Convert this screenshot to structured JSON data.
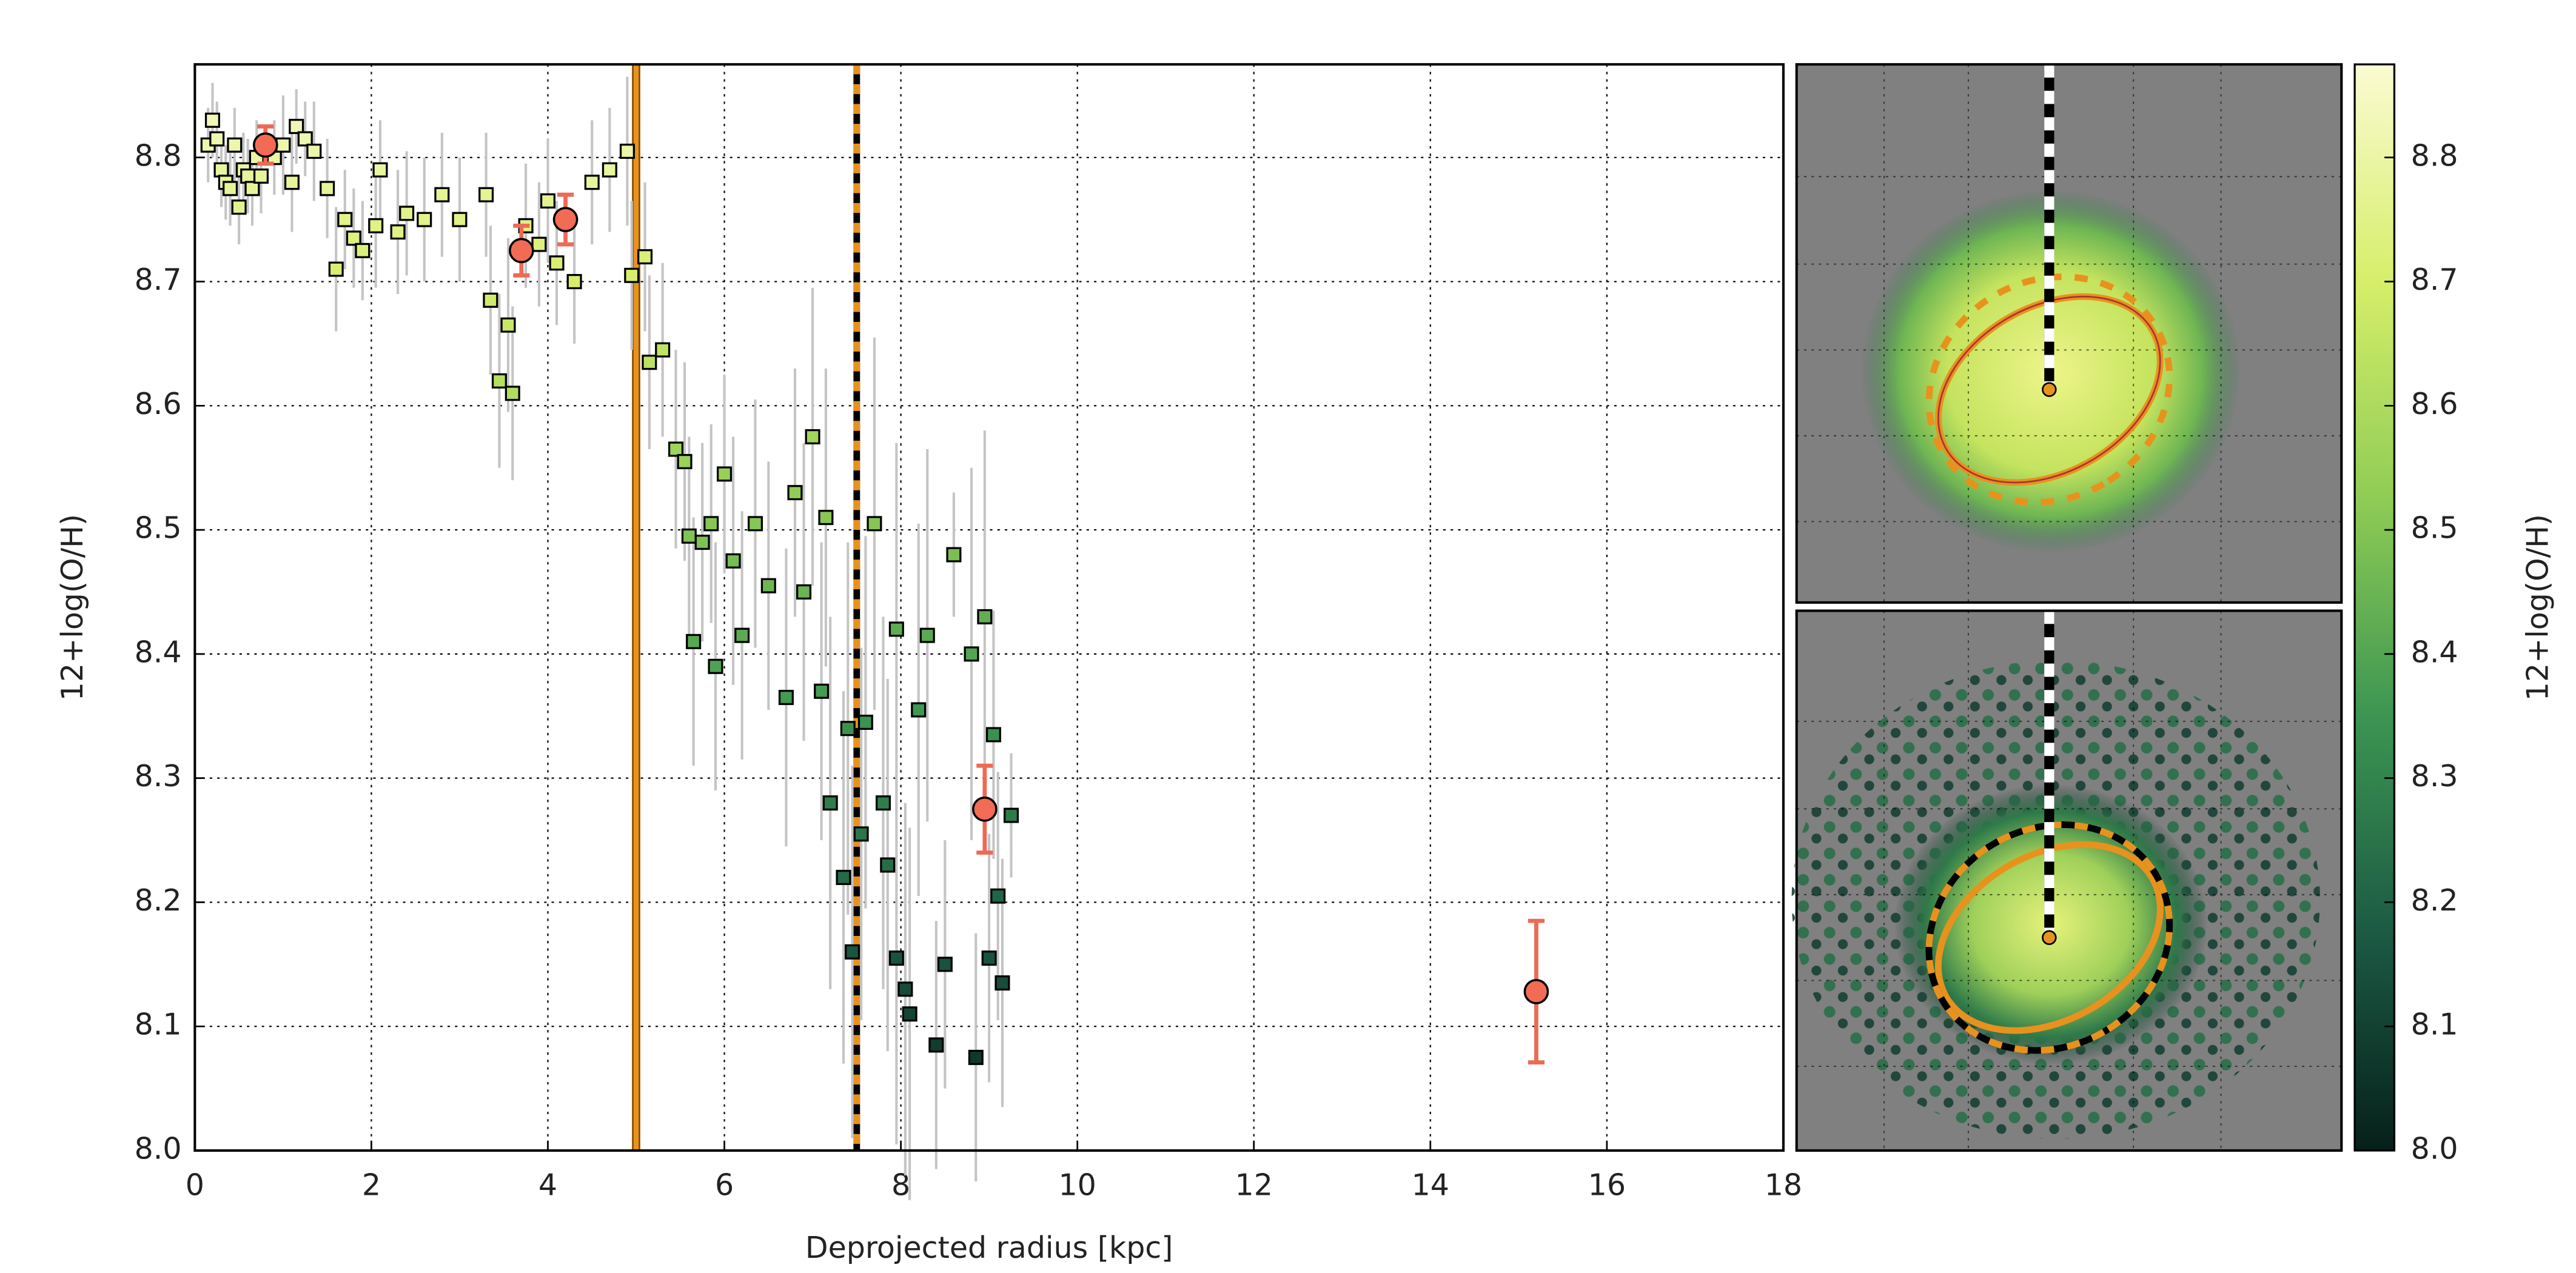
{
  "chart_data": {
    "type": "scatter",
    "xlabel": "Deprojected radius [kpc]",
    "ylabel": "12+log(O/H)",
    "colorbar_label": "12+log(O/H)",
    "xlim": [
      0,
      18
    ],
    "ylim": [
      8.0,
      8.875
    ],
    "xticks": [
      0,
      2,
      4,
      6,
      8,
      10,
      12,
      14,
      16,
      18
    ],
    "yticks": [
      {
        "value": 8.0,
        "label": "8.0"
      },
      8.1,
      8.2,
      8.3,
      8.4,
      8.5,
      8.6,
      8.7,
      8.8
    ],
    "clim": [
      8.0,
      8.875
    ],
    "cticks": [
      {
        "value": 8.0,
        "label": "8.0"
      },
      8.1,
      8.2,
      8.3,
      8.4,
      8.5,
      8.6,
      8.7,
      8.8
    ],
    "colormap": [
      "#06201a",
      "#1c5a44",
      "#3c9552",
      "#8fcc55",
      "#d6ee6a",
      "#fbfbd2"
    ],
    "grid": true,
    "series": [
      {
        "marker": "square",
        "error_color": "#c4c4c4",
        "x": [
          0.15,
          0.2,
          0.25,
          0.3,
          0.35,
          0.4,
          0.45,
          0.5,
          0.55,
          0.6,
          0.65,
          0.7,
          0.75,
          0.9,
          1.0,
          1.1,
          1.15,
          1.25,
          1.35,
          1.5,
          1.6,
          1.7,
          1.8,
          1.9,
          2.05,
          2.1,
          2.3,
          2.4,
          2.6,
          2.8,
          3.0,
          3.3,
          3.35,
          3.45,
          3.55,
          3.6,
          3.75,
          3.9,
          4.0,
          4.1,
          4.3,
          4.5,
          4.7,
          4.9,
          4.95,
          5.1,
          5.15,
          5.3,
          5.45,
          5.55,
          5.6,
          5.65,
          5.75,
          5.85,
          5.9,
          6.0,
          6.1,
          6.2,
          6.35,
          6.5,
          6.7,
          6.8,
          6.9,
          7.0,
          7.1,
          7.15,
          7.2,
          7.35,
          7.4,
          7.45,
          7.55,
          7.6,
          7.7,
          7.8,
          7.85,
          7.95,
          7.95,
          8.05,
          8.1,
          8.2,
          8.3,
          8.4,
          8.5,
          8.6,
          8.8,
          8.85,
          8.95,
          9.0,
          9.05,
          9.1,
          9.15,
          9.25
        ],
        "values": [
          8.81,
          8.83,
          8.815,
          8.79,
          8.78,
          8.775,
          8.81,
          8.76,
          8.79,
          8.785,
          8.775,
          8.8,
          8.785,
          8.8,
          8.81,
          8.78,
          8.825,
          8.815,
          8.805,
          8.775,
          8.71,
          8.75,
          8.735,
          8.725,
          8.745,
          8.79,
          8.74,
          8.755,
          8.75,
          8.77,
          8.75,
          8.77,
          8.685,
          8.62,
          8.665,
          8.61,
          8.745,
          8.73,
          8.765,
          8.715,
          8.7,
          8.78,
          8.79,
          8.805,
          8.705,
          8.72,
          8.635,
          8.645,
          8.565,
          8.555,
          8.495,
          8.41,
          8.49,
          8.505,
          8.39,
          8.545,
          8.475,
          8.415,
          8.505,
          8.455,
          8.365,
          8.53,
          8.45,
          8.575,
          8.37,
          8.51,
          8.28,
          8.22,
          8.34,
          8.16,
          8.255,
          8.345,
          8.505,
          8.28,
          8.23,
          8.42,
          8.155,
          8.13,
          8.11,
          8.355,
          8.415,
          8.085,
          8.15,
          8.48,
          8.4,
          8.075,
          8.43,
          8.155,
          8.335,
          8.205,
          8.135,
          8.27
        ],
        "errors": [
          0.03,
          0.03,
          0.03,
          0.03,
          0.03,
          0.03,
          0.03,
          0.03,
          0.03,
          0.03,
          0.03,
          0.03,
          0.03,
          0.03,
          0.04,
          0.04,
          0.03,
          0.03,
          0.04,
          0.04,
          0.05,
          0.04,
          0.04,
          0.04,
          0.05,
          0.04,
          0.05,
          0.05,
          0.05,
          0.05,
          0.05,
          0.05,
          0.06,
          0.07,
          0.07,
          0.07,
          0.05,
          0.05,
          0.05,
          0.05,
          0.05,
          0.05,
          0.05,
          0.06,
          0.06,
          0.06,
          0.07,
          0.07,
          0.08,
          0.08,
          0.08,
          0.1,
          0.08,
          0.08,
          0.1,
          0.08,
          0.1,
          0.1,
          0.1,
          0.1,
          0.12,
          0.1,
          0.12,
          0.12,
          0.12,
          0.12,
          0.15,
          0.15,
          0.15,
          0.15,
          0.15,
          0.15,
          0.15,
          0.15,
          0.15,
          0.15,
          0.15,
          0.15,
          0.15,
          0.15,
          0.15,
          0.1,
          0.1,
          0.05,
          0.15,
          0.1,
          0.15,
          0.1,
          0.1,
          0.1,
          0.1,
          0.05
        ]
      },
      {
        "marker": "circle",
        "color": "#f26b55",
        "error_color": "#ee6a55",
        "x": [
          0.8,
          3.7,
          4.2,
          8.95,
          15.2
        ],
        "values": [
          8.81,
          8.725,
          8.75,
          8.275,
          8.128
        ],
        "errors": [
          0.015,
          0.02,
          0.02,
          0.035,
          0.057
        ]
      }
    ],
    "vlines": [
      {
        "x": 5,
        "style": "solid",
        "color": "#e8921e"
      },
      {
        "x": 7.5,
        "style": "dashed",
        "color": "#e8921e"
      }
    ]
  }
}
